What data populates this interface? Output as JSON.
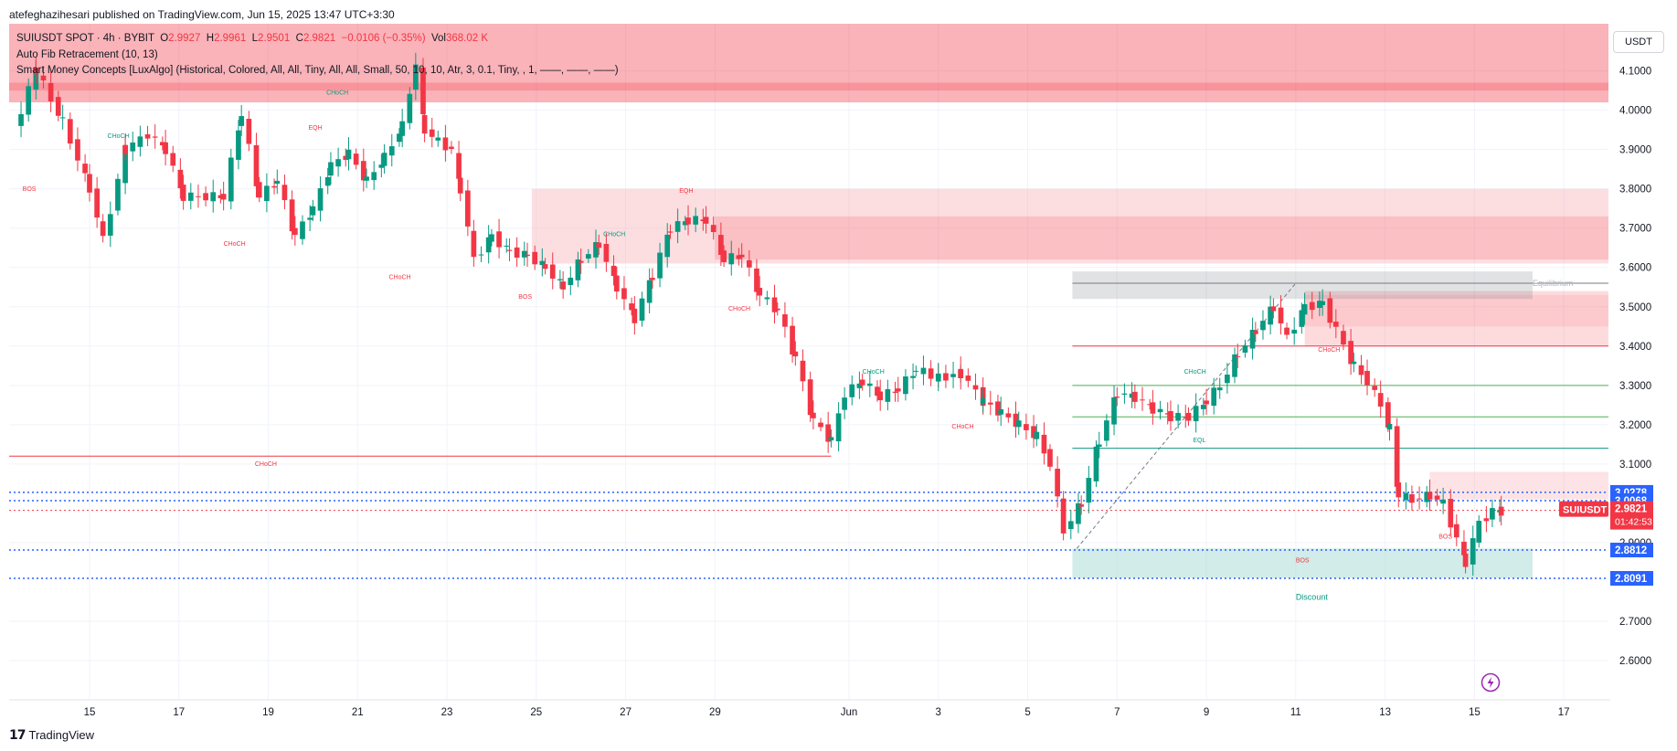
{
  "header": {
    "published_line": "atefeghazihesari published on TradingView.com, Jun 15, 2025 13:47 UTC+3:30"
  },
  "legend": {
    "symbol": "SUIUSDT SPOT · 4h · BYBIT",
    "o_label": "O",
    "o_value": "2.9927",
    "h_label": "H",
    "h_value": "2.9961",
    "l_label": "L",
    "l_value": "2.9501",
    "c_label": "C",
    "c_value": "2.9821",
    "change": "−0.0106 (−0.35%)",
    "vol_label": "Vol",
    "vol_value": "368.02 K",
    "indicator1": "Auto Fib Retracement (10, 13)",
    "indicator2": "Smart Money Concepts [LuxAlgo] (Historical, Colored, All, All, Tiny, All, All, Small, 50, 10, 10, Atr, 3, 0.1, Tiny, , 1, ——, ——, ——)"
  },
  "toolbar": {
    "currency": "USDT"
  },
  "footer": {
    "brand": "TradingView"
  },
  "colors": {
    "up": "#089981",
    "down": "#f23645",
    "supply": "#f7a1a8",
    "demand": "#b2dfdb",
    "level": "#2962ff"
  },
  "chart_data": {
    "type": "candlestick",
    "symbol": "SUIUSDT",
    "timeframe": "4h",
    "ylim": [
      2.5,
      4.22
    ],
    "y_ticks": [
      "4.1000",
      "4.0000",
      "3.9000",
      "3.8000",
      "3.7000",
      "3.6000",
      "3.5000",
      "3.4000",
      "3.3000",
      "3.2000",
      "3.1000",
      "2.9000",
      "2.7000",
      "2.6000"
    ],
    "x_ticks": [
      {
        "label": "15",
        "day": 15
      },
      {
        "label": "17",
        "day": 17
      },
      {
        "label": "19",
        "day": 19
      },
      {
        "label": "21",
        "day": 21
      },
      {
        "label": "23",
        "day": 23
      },
      {
        "label": "25",
        "day": 25
      },
      {
        "label": "27",
        "day": 27
      },
      {
        "label": "29",
        "day": 29
      },
      {
        "label": "Jun",
        "day": 32
      },
      {
        "label": "3",
        "day": 34
      },
      {
        "label": "5",
        "day": 36
      },
      {
        "label": "7",
        "day": 38
      },
      {
        "label": "9",
        "day": 40
      },
      {
        "label": "11",
        "day": 42
      },
      {
        "label": "13",
        "day": 44
      },
      {
        "label": "15",
        "day": 46
      },
      {
        "label": "17",
        "day": 48
      }
    ],
    "x_range_days": [
      13.2,
      49.0
    ],
    "key_points": [
      [
        13.3,
        3.95
      ],
      [
        13.8,
        4.1
      ],
      [
        14.4,
        3.97
      ],
      [
        15.0,
        3.8
      ],
      [
        15.3,
        3.67
      ],
      [
        15.8,
        3.9
      ],
      [
        16.3,
        3.94
      ],
      [
        16.7,
        3.9
      ],
      [
        17.1,
        3.78
      ],
      [
        17.6,
        3.78
      ],
      [
        18.0,
        3.78
      ],
      [
        18.4,
        3.99
      ],
      [
        18.8,
        3.78
      ],
      [
        19.2,
        3.82
      ],
      [
        19.6,
        3.68
      ],
      [
        20.0,
        3.75
      ],
      [
        20.4,
        3.86
      ],
      [
        20.8,
        3.89
      ],
      [
        21.2,
        3.82
      ],
      [
        21.6,
        3.88
      ],
      [
        22.0,
        3.96
      ],
      [
        22.3,
        4.12
      ],
      [
        22.5,
        3.95
      ],
      [
        22.8,
        3.92
      ],
      [
        23.1,
        3.9
      ],
      [
        23.3,
        3.8
      ],
      [
        23.6,
        3.62
      ],
      [
        24.0,
        3.68
      ],
      [
        24.4,
        3.64
      ],
      [
        24.8,
        3.63
      ],
      [
        25.2,
        3.6
      ],
      [
        25.6,
        3.55
      ],
      [
        26.0,
        3.62
      ],
      [
        26.4,
        3.66
      ],
      [
        26.8,
        3.55
      ],
      [
        27.2,
        3.47
      ],
      [
        27.6,
        3.58
      ],
      [
        28.0,
        3.7
      ],
      [
        28.4,
        3.72
      ],
      [
        28.8,
        3.72
      ],
      [
        29.2,
        3.62
      ],
      [
        29.6,
        3.63
      ],
      [
        30.0,
        3.53
      ],
      [
        30.4,
        3.49
      ],
      [
        30.8,
        3.37
      ],
      [
        31.2,
        3.21
      ],
      [
        31.6,
        3.16
      ],
      [
        31.9,
        3.28
      ],
      [
        32.3,
        3.31
      ],
      [
        32.7,
        3.27
      ],
      [
        33.1,
        3.29
      ],
      [
        33.5,
        3.34
      ],
      [
        34.0,
        3.32
      ],
      [
        34.5,
        3.33
      ],
      [
        35.0,
        3.26
      ],
      [
        35.4,
        3.23
      ],
      [
        35.8,
        3.2
      ],
      [
        36.2,
        3.17
      ],
      [
        36.5,
        3.1
      ],
      [
        36.8,
        2.93
      ],
      [
        37.2,
        3.0
      ],
      [
        37.6,
        3.16
      ],
      [
        38.0,
        3.28
      ],
      [
        38.4,
        3.27
      ],
      [
        38.8,
        3.24
      ],
      [
        39.2,
        3.22
      ],
      [
        39.6,
        3.22
      ],
      [
        40.0,
        3.26
      ],
      [
        40.3,
        3.3
      ],
      [
        40.7,
        3.38
      ],
      [
        41.1,
        3.44
      ],
      [
        41.5,
        3.5
      ],
      [
        41.8,
        3.42
      ],
      [
        42.2,
        3.5
      ],
      [
        42.6,
        3.51
      ],
      [
        42.9,
        3.44
      ],
      [
        43.3,
        3.35
      ],
      [
        43.6,
        3.31
      ],
      [
        43.9,
        3.25
      ],
      [
        44.1,
        3.19
      ],
      [
        44.3,
        3.02
      ],
      [
        44.6,
        3.01
      ],
      [
        45.0,
        3.02
      ],
      [
        45.3,
        3.0
      ],
      [
        45.6,
        2.91
      ],
      [
        45.8,
        2.85
      ],
      [
        46.1,
        2.95
      ],
      [
        46.4,
        2.98
      ],
      [
        46.6,
        2.98
      ]
    ],
    "last_price": {
      "label": "SUIUSDT",
      "value": "2.9821",
      "countdown": "01:42:53"
    },
    "price_levels": [
      {
        "value": "3.0278",
        "price": 3.0278
      },
      {
        "value": "3.0068",
        "price": 3.0068
      },
      {
        "value": "2.8812",
        "price": 2.8812
      },
      {
        "value": "2.8091",
        "price": 2.8091
      }
    ],
    "smc_labels": [
      {
        "text": "CHoCH",
        "day": 15.4,
        "price": 3.93,
        "color": "#089981"
      },
      {
        "text": "CHoCH",
        "day": 20.3,
        "price": 4.04,
        "color": "#089981"
      },
      {
        "text": "EQH",
        "day": 19.9,
        "price": 3.95,
        "color": "#f23645"
      },
      {
        "text": "BOS",
        "day": 13.5,
        "price": 3.795,
        "color": "#f23645"
      },
      {
        "text": "CHoCH",
        "day": 18.0,
        "price": 3.655,
        "color": "#f23645"
      },
      {
        "text": "CHoCH",
        "day": 21.7,
        "price": 3.57,
        "color": "#f23645"
      },
      {
        "text": "BOS",
        "day": 24.6,
        "price": 3.52,
        "color": "#f23645"
      },
      {
        "text": "CHoCH",
        "day": 26.5,
        "price": 3.68,
        "color": "#089981"
      },
      {
        "text": "EQH",
        "day": 28.2,
        "price": 3.79,
        "color": "#f23645"
      },
      {
        "text": "CHoCH",
        "day": 29.3,
        "price": 3.49,
        "color": "#f23645"
      },
      {
        "text": "CHoCH",
        "day": 32.3,
        "price": 3.33,
        "color": "#089981"
      },
      {
        "text": "CHoCH",
        "day": 34.3,
        "price": 3.19,
        "color": "#f23645"
      },
      {
        "text": "CHoCH",
        "day": 39.5,
        "price": 3.33,
        "color": "#089981"
      },
      {
        "text": "EQL",
        "day": 39.7,
        "price": 3.155,
        "color": "#089981"
      },
      {
        "text": "CHoCH",
        "day": 42.5,
        "price": 3.385,
        "color": "#f23645"
      },
      {
        "text": "BOS",
        "day": 45.2,
        "price": 2.91,
        "color": "#f23645"
      },
      {
        "text": "CHoCH",
        "day": 18.7,
        "price": 3.095,
        "color": "#f23645"
      },
      {
        "text": "BOS",
        "day": 42.0,
        "price": 2.85,
        "color": "#f23645"
      },
      {
        "text": "Discount",
        "day": 42.0,
        "price": 2.755,
        "color": "#089981"
      },
      {
        "text": "Equilibrium",
        "day": 47.3,
        "price": 3.553,
        "color": "#b2b5be"
      }
    ]
  }
}
